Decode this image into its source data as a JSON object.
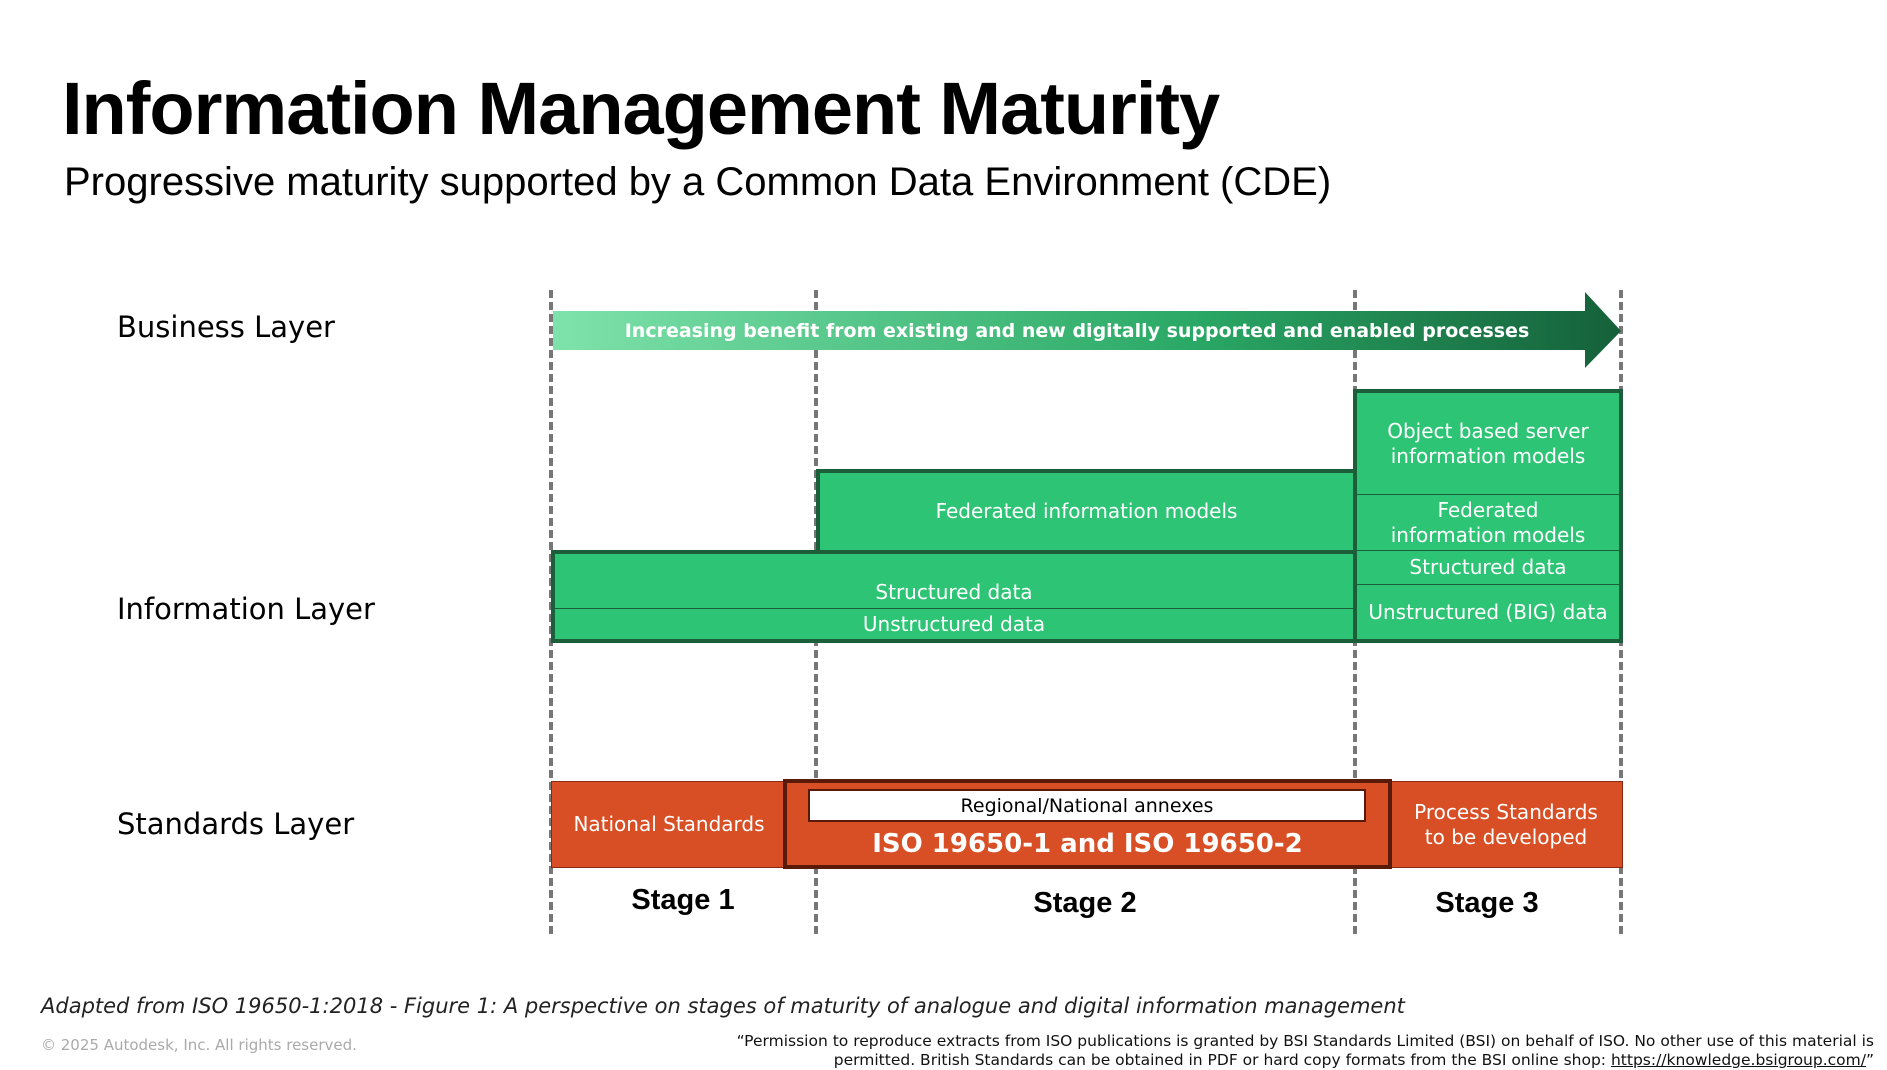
{
  "title": "Information Management Maturity",
  "subtitle": "Progressive maturity supported by a Common Data Environment (CDE)",
  "layers": {
    "business": "Business Layer",
    "information": "Information Layer",
    "standards": "Standards Layer"
  },
  "arrow_text": "Increasing benefit from existing and new digitally supported and enabled processes",
  "information": {
    "structured": "Structured data",
    "unstructured": "Unstructured data",
    "federated": "Federated information models",
    "object_based": "Object based server information models",
    "stage3_federated": "Federated information models",
    "stage3_structured": "Structured data",
    "stage3_unstructured": "Unstructured (BIG) data"
  },
  "standards": {
    "national": "National Standards",
    "annexes": "Regional/National annexes",
    "iso": "ISO 19650-1 and ISO 19650-2",
    "process": "Process Standards to be developed"
  },
  "stages": [
    "Stage 1",
    "Stage 2",
    "Stage 3"
  ],
  "caption": "Adapted from ISO 19650-1:2018 - Figure 1: A perspective on stages of maturity of analogue and digital information management",
  "copyright": "© 2025 Autodesk, Inc. All rights reserved.",
  "permission": "“Permission to reproduce extracts from ISO publications is granted by BSI Standards Limited (BSI) on behalf of ISO. No other use of this material is permitted.  British Standards can be obtained in PDF or hard copy formats from the BSI online shop: ",
  "permission_link": "https://knowledge.bsigroup.com/",
  "permission_end": "”",
  "colors": {
    "green": "#2dc475",
    "dark_green": "#1c5e3a",
    "orange": "#d84e25"
  }
}
